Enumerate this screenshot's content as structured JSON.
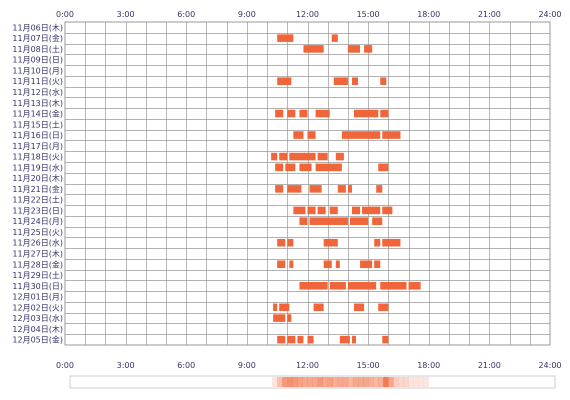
{
  "chart_data": {
    "type": "timeline",
    "x_unit": "hour of day",
    "xlim": [
      0,
      24
    ],
    "x_ticks": [
      "0:00",
      "3:00",
      "6:00",
      "9:00",
      "12:00",
      "15:00",
      "18:00",
      "21:00",
      "24:00"
    ],
    "bar_color": "#f0663a",
    "bar_color_light": "#f7916a",
    "grid_color": "#999999",
    "rows": [
      {
        "label": "11月06日(木)",
        "segments": []
      },
      {
        "label": "11月07日(金)",
        "segments": [
          [
            10.5,
            11.3
          ],
          [
            13.2,
            13.5
          ]
        ]
      },
      {
        "label": "11月08日(土)",
        "segments": [
          [
            11.8,
            12.8
          ],
          [
            14.0,
            14.6
          ],
          [
            14.8,
            15.2
          ]
        ]
      },
      {
        "label": "11月09日(日)",
        "segments": []
      },
      {
        "label": "11月10日(月)",
        "segments": []
      },
      {
        "label": "11月11日(火)",
        "segments": [
          [
            10.5,
            11.2
          ],
          [
            13.3,
            14.0
          ],
          [
            14.2,
            14.5
          ],
          [
            15.6,
            15.9
          ]
        ]
      },
      {
        "label": "11月12日(水)",
        "segments": []
      },
      {
        "label": "11月13日(木)",
        "segments": []
      },
      {
        "label": "11月14日(金)",
        "segments": [
          [
            10.4,
            10.8
          ],
          [
            11.0,
            11.4
          ],
          [
            11.6,
            12.0
          ],
          [
            12.4,
            13.1
          ],
          [
            14.3,
            15.5
          ],
          [
            15.6,
            16.0
          ]
        ]
      },
      {
        "label": "11月15日(土)",
        "segments": []
      },
      {
        "label": "11月16日(日)",
        "segments": [
          [
            11.3,
            11.8
          ],
          [
            12.0,
            12.4
          ],
          [
            13.7,
            15.6
          ],
          [
            15.7,
            16.6
          ]
        ]
      },
      {
        "label": "11月17日(月)",
        "segments": []
      },
      {
        "label": "11月18日(火)",
        "segments": [
          [
            10.2,
            10.5
          ],
          [
            10.6,
            11.0
          ],
          [
            11.1,
            12.4
          ],
          [
            12.5,
            13.0
          ],
          [
            13.4,
            13.8
          ]
        ]
      },
      {
        "label": "11月19日(水)",
        "segments": [
          [
            10.4,
            10.8
          ],
          [
            10.9,
            11.4
          ],
          [
            11.6,
            12.2
          ],
          [
            12.4,
            13.7
          ],
          [
            15.5,
            16.0
          ]
        ]
      },
      {
        "label": "11月20日(木)",
        "segments": []
      },
      {
        "label": "11月21日(金)",
        "segments": [
          [
            10.4,
            10.8
          ],
          [
            11.0,
            11.7
          ],
          [
            12.1,
            12.7
          ],
          [
            13.5,
            13.9
          ],
          [
            14.0,
            14.2
          ],
          [
            15.4,
            15.7
          ]
        ]
      },
      {
        "label": "11月22日(土)",
        "segments": []
      },
      {
        "label": "11月23日(日)",
        "segments": [
          [
            11.3,
            11.9
          ],
          [
            12.0,
            12.4
          ],
          [
            12.5,
            12.9
          ],
          [
            13.1,
            13.5
          ],
          [
            14.2,
            14.6
          ],
          [
            14.7,
            15.6
          ],
          [
            15.7,
            16.2
          ]
        ]
      },
      {
        "label": "11月24日(月)",
        "segments": [
          [
            11.6,
            12.0
          ],
          [
            12.1,
            14.0
          ],
          [
            14.1,
            15.0
          ],
          [
            15.2,
            15.7
          ]
        ]
      },
      {
        "label": "11月25日(火)",
        "segments": []
      },
      {
        "label": "11月26日(水)",
        "segments": [
          [
            10.5,
            10.9
          ],
          [
            11.0,
            11.3
          ],
          [
            12.8,
            13.5
          ],
          [
            15.3,
            15.6
          ],
          [
            15.7,
            16.6
          ]
        ]
      },
      {
        "label": "11月27日(木)",
        "segments": []
      },
      {
        "label": "11月28日(金)",
        "segments": [
          [
            10.5,
            10.9
          ],
          [
            11.1,
            11.3
          ],
          [
            12.8,
            13.2
          ],
          [
            13.4,
            13.6
          ],
          [
            14.6,
            15.2
          ],
          [
            15.3,
            15.6
          ]
        ]
      },
      {
        "label": "11月29日(土)",
        "segments": []
      },
      {
        "label": "11月30日(日)",
        "segments": [
          [
            11.6,
            13.0
          ],
          [
            13.1,
            13.9
          ],
          [
            14.0,
            15.4
          ],
          [
            15.6,
            16.9
          ],
          [
            17.0,
            17.6
          ]
        ]
      },
      {
        "label": "12月01日(月)",
        "segments": []
      },
      {
        "label": "12月02日(火)",
        "segments": [
          [
            10.3,
            10.5
          ],
          [
            10.6,
            11.1
          ],
          [
            12.3,
            12.8
          ],
          [
            14.3,
            14.8
          ],
          [
            15.5,
            16.0
          ]
        ]
      },
      {
        "label": "12月03日(水)",
        "segments": [
          [
            10.3,
            10.9
          ],
          [
            11.0,
            11.2
          ]
        ]
      },
      {
        "label": "12月04日(木)",
        "segments": []
      },
      {
        "label": "12月05日(金)",
        "segments": [
          [
            10.5,
            10.9
          ],
          [
            11.0,
            11.4
          ],
          [
            11.5,
            11.8
          ],
          [
            12.0,
            12.3
          ],
          [
            13.6,
            14.1
          ],
          [
            14.2,
            14.4
          ],
          [
            15.7,
            16.0
          ]
        ]
      }
    ],
    "heat_strip": true
  }
}
